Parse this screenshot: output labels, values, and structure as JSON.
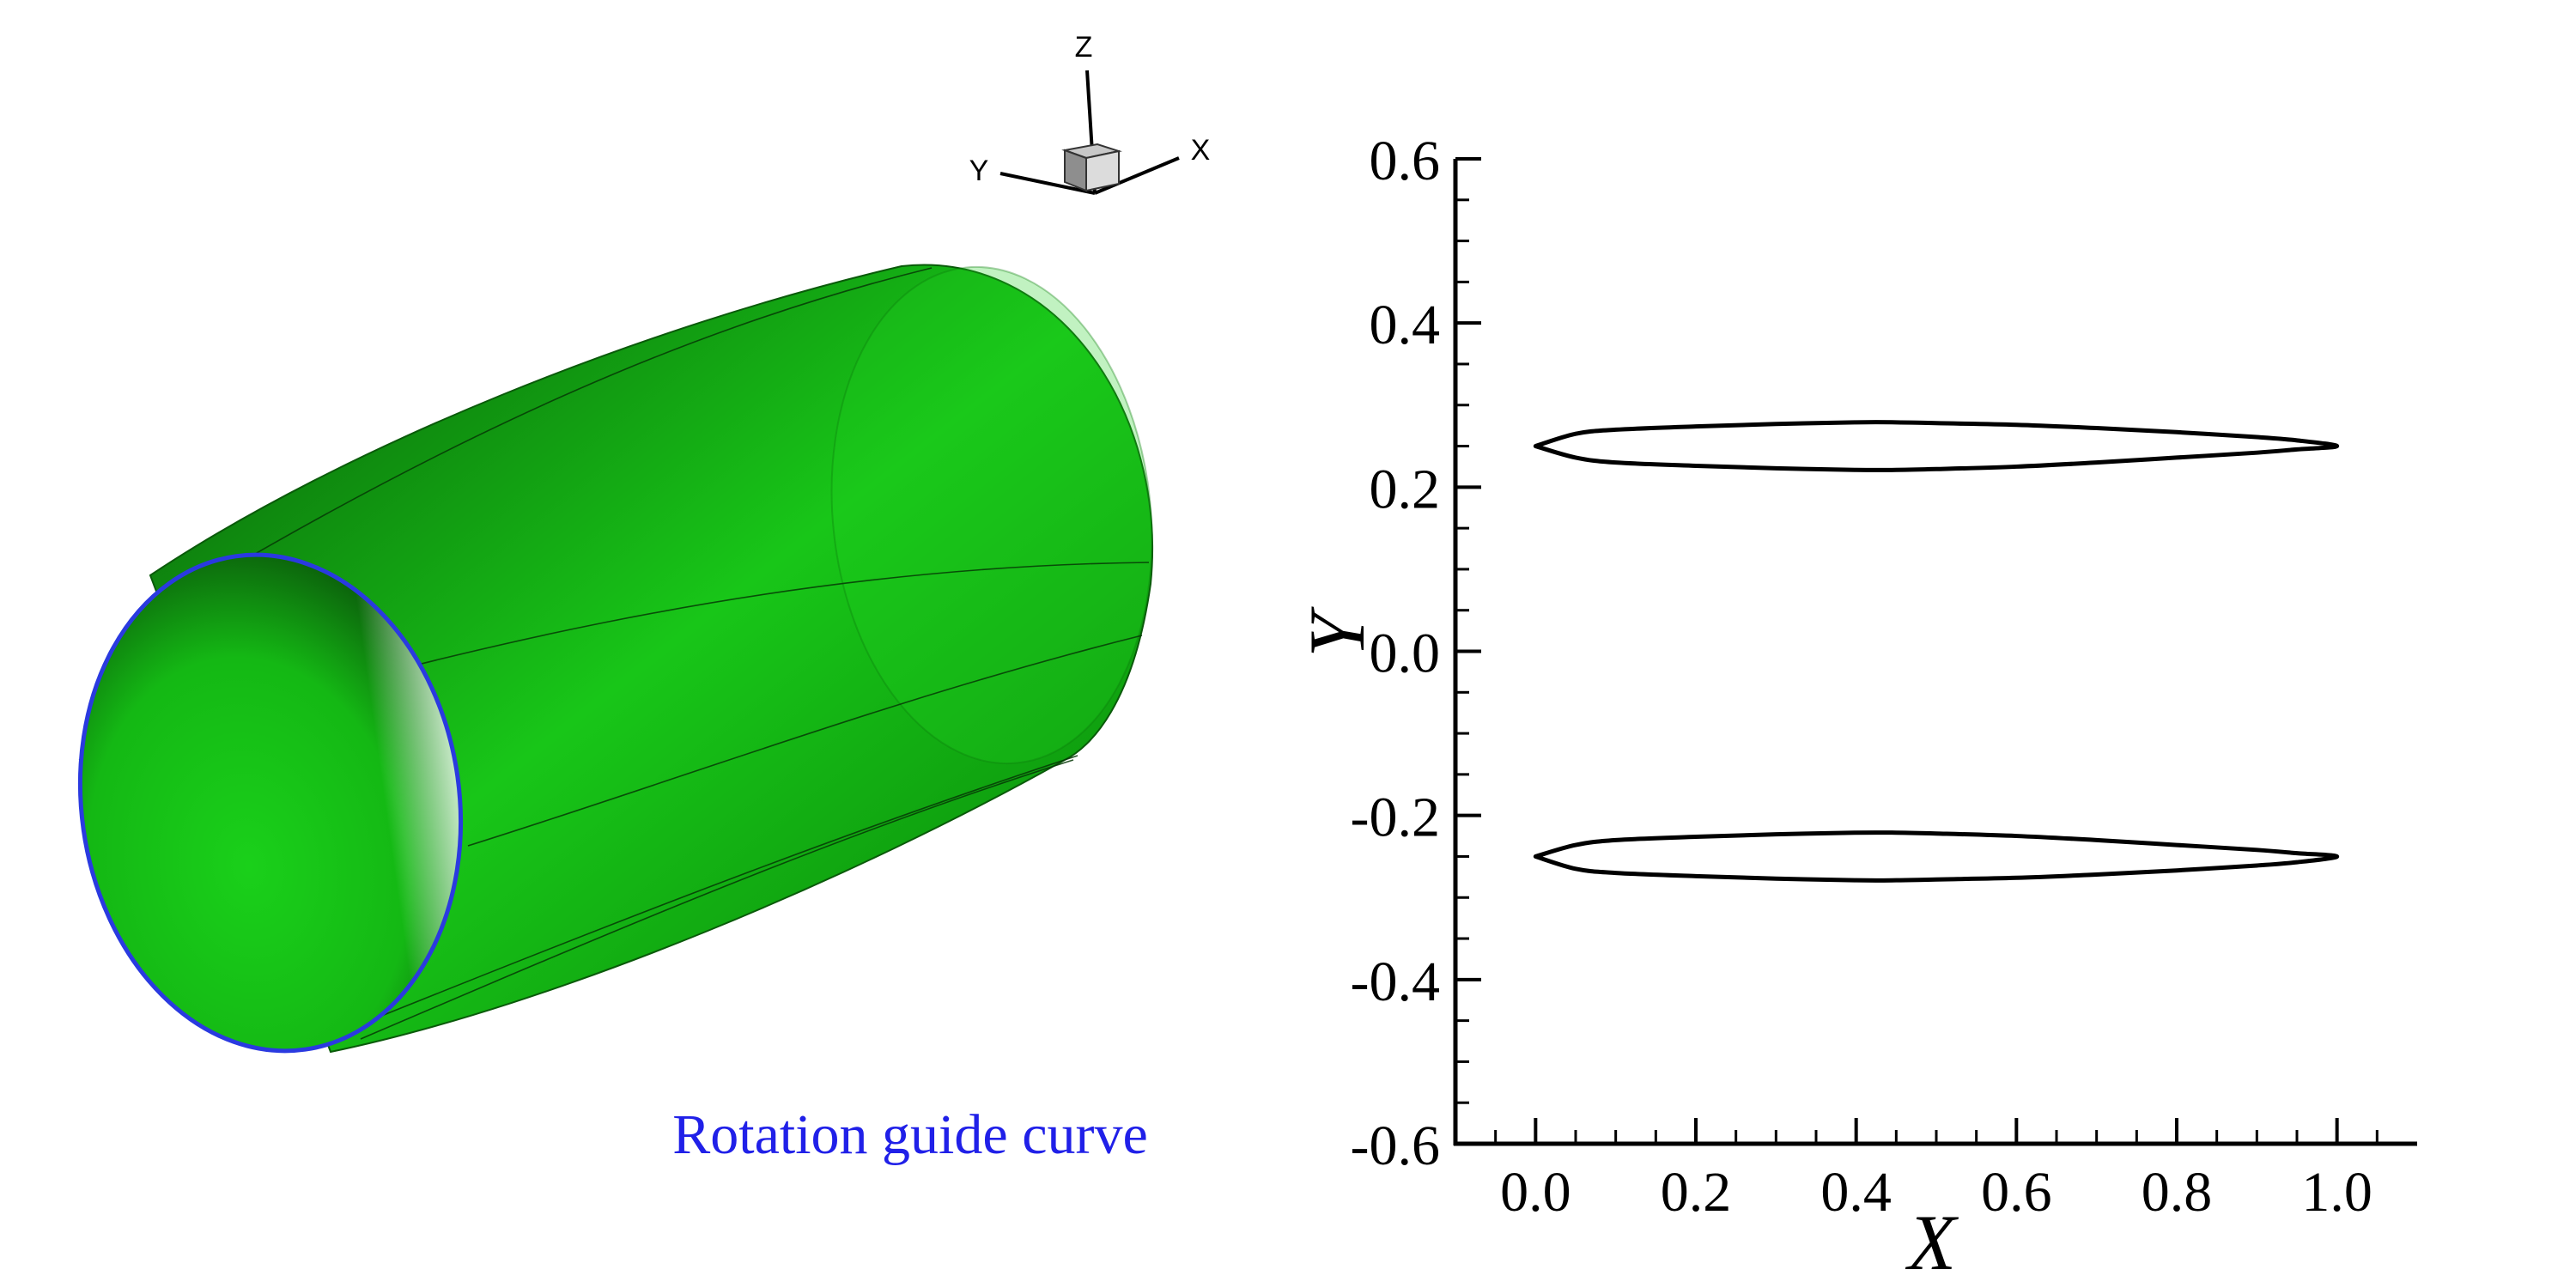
{
  "triad": {
    "z_label": "Z",
    "y_label": "Y",
    "x_label": "X"
  },
  "render": {
    "annotation": "Rotation guide curve",
    "body_color": "#17c417",
    "body_dark": "#0a5a0a",
    "guide_color": "#2a3ae0",
    "annotation_color": "#2020e8"
  },
  "chart_data": {
    "type": "line",
    "xlabel": "X",
    "ylabel": "Y",
    "xlim": [
      -0.1,
      1.1
    ],
    "ylim": [
      -0.6,
      0.6
    ],
    "x_ticks": [
      "0.0",
      "0.2",
      "0.4",
      "0.6",
      "0.8",
      "1.0"
    ],
    "y_ticks": [
      "0.6",
      "0.4",
      "0.2",
      "0.0",
      "-0.2",
      "-0.4",
      "-0.6"
    ],
    "grid": false,
    "series": [
      {
        "x": [
          0.0,
          0.05,
          0.1,
          0.2,
          0.3,
          0.4,
          0.45,
          0.5,
          0.6,
          0.7,
          0.8,
          0.9,
          0.95,
          1.0,
          0.95,
          0.9,
          0.8,
          0.7,
          0.6,
          0.5,
          0.45,
          0.4,
          0.3,
          0.2,
          0.1,
          0.05,
          0.0
        ],
        "y": [
          0.25,
          0.265,
          0.27,
          0.274,
          0.277,
          0.279,
          0.279,
          0.278,
          0.276,
          0.272,
          0.267,
          0.261,
          0.257,
          0.25,
          0.246,
          0.242,
          0.236,
          0.23,
          0.225,
          0.222,
          0.221,
          0.221,
          0.223,
          0.226,
          0.23,
          0.236,
          0.25
        ]
      },
      {
        "x": [
          0.0,
          0.05,
          0.1,
          0.2,
          0.3,
          0.4,
          0.45,
          0.5,
          0.6,
          0.7,
          0.8,
          0.9,
          0.95,
          1.0,
          0.95,
          0.9,
          0.8,
          0.7,
          0.6,
          0.5,
          0.45,
          0.4,
          0.3,
          0.2,
          0.1,
          0.05,
          0.0
        ],
        "y": [
          -0.25,
          -0.236,
          -0.23,
          -0.226,
          -0.223,
          -0.221,
          -0.221,
          -0.222,
          -0.225,
          -0.23,
          -0.236,
          -0.242,
          -0.246,
          -0.25,
          -0.257,
          -0.261,
          -0.267,
          -0.272,
          -0.276,
          -0.278,
          -0.279,
          -0.279,
          -0.277,
          -0.274,
          -0.27,
          -0.265,
          -0.25
        ]
      }
    ]
  }
}
